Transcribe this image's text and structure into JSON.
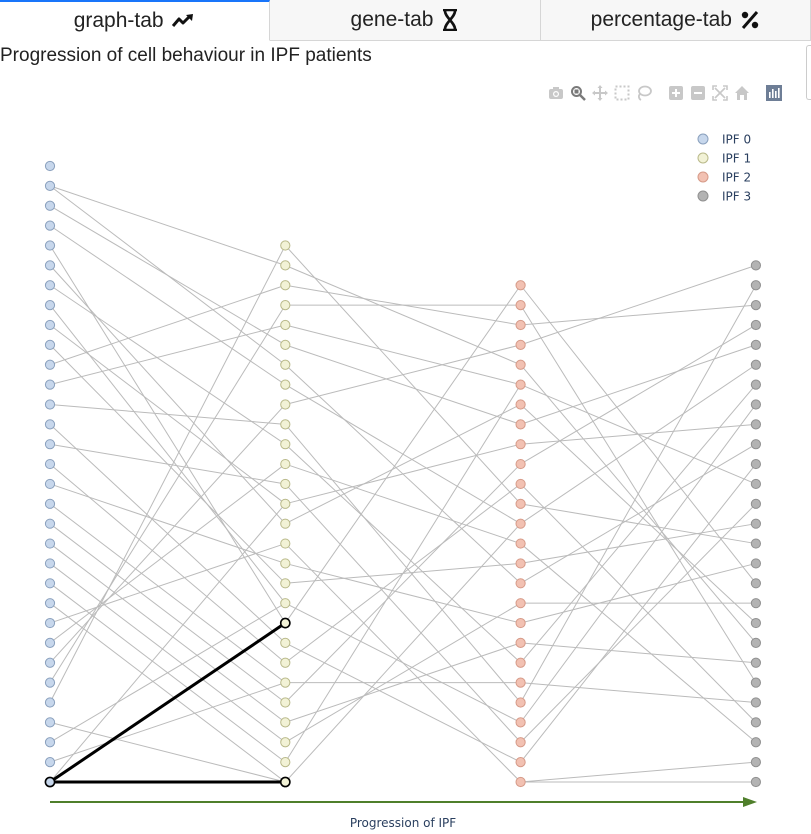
{
  "tabs": [
    {
      "label": "graph-tab",
      "icon": "trend-up-icon",
      "active": true
    },
    {
      "label": "gene-tab",
      "icon": "dna-icon",
      "active": false
    },
    {
      "label": "percentage-tab",
      "icon": "percent-icon",
      "active": false
    }
  ],
  "page_title": "Progression of cell behaviour in IPF patients",
  "modebar": [
    {
      "name": "camera-icon",
      "title": "Download plot as png"
    },
    {
      "name": "zoom-icon",
      "title": "Zoom"
    },
    {
      "name": "pan-icon",
      "title": "Pan"
    },
    {
      "name": "box-select-icon",
      "title": "Box Select"
    },
    {
      "name": "lasso-select-icon",
      "title": "Lasso Select"
    },
    {
      "name": "zoom-in-icon",
      "title": "Zoom in"
    },
    {
      "name": "zoom-out-icon",
      "title": "Zoom out"
    },
    {
      "name": "autoscale-icon",
      "title": "Autoscale"
    },
    {
      "name": "reset-axes-icon",
      "title": "Reset axes"
    },
    {
      "name": "plotly-logo-icon",
      "title": "Produced with Plotly"
    }
  ],
  "chart_data": {
    "type": "scatter",
    "xlabel": "Progression of IPF",
    "legend_position": "top-right",
    "colors": {
      "edge": "#bbbbbb",
      "highlight": "#000000",
      "arrow": "#4f7f2b"
    },
    "series": [
      {
        "name": "IPF 0",
        "x": 0,
        "count": 32,
        "ymin": 0,
        "color": "#c7d7ec",
        "edge": "#8aa0bd"
      },
      {
        "name": "IPF 1",
        "x": 1,
        "count": 28,
        "ymin": 0,
        "color": "#f2f2d6",
        "edge": "#b9b98a"
      },
      {
        "name": "IPF 2",
        "x": 2,
        "count": 26,
        "ymin": 0,
        "color": "#f2c1b2",
        "edge": "#d69a88"
      },
      {
        "name": "IPF 3",
        "x": 3,
        "count": 27,
        "ymin": 0,
        "color": "#b3b3b3",
        "edge": "#909090"
      }
    ],
    "edges": [
      [
        0,
        30,
        1,
        26
      ],
      [
        0,
        30,
        1,
        21
      ],
      [
        0,
        29,
        1,
        22
      ],
      [
        0,
        28,
        1,
        20
      ],
      [
        0,
        27,
        1,
        8
      ],
      [
        0,
        26,
        1,
        13
      ],
      [
        0,
        25,
        1,
        17
      ],
      [
        0,
        24,
        1,
        9
      ],
      [
        0,
        23,
        1,
        14
      ],
      [
        0,
        22,
        1,
        10
      ],
      [
        0,
        21,
        1,
        25
      ],
      [
        0,
        20,
        1,
        23
      ],
      [
        0,
        19,
        1,
        18
      ],
      [
        0,
        18,
        1,
        7
      ],
      [
        0,
        17,
        1,
        15
      ],
      [
        0,
        16,
        1,
        6
      ],
      [
        0,
        15,
        1,
        11
      ],
      [
        0,
        14,
        1,
        5
      ],
      [
        0,
        13,
        1,
        4
      ],
      [
        0,
        12,
        1,
        3
      ],
      [
        0,
        11,
        1,
        2
      ],
      [
        0,
        10,
        1,
        1
      ],
      [
        0,
        9,
        1,
        0
      ],
      [
        0,
        8,
        1,
        12
      ],
      [
        0,
        7,
        1,
        16
      ],
      [
        0,
        6,
        1,
        19
      ],
      [
        0,
        5,
        1,
        24
      ],
      [
        0,
        4,
        1,
        27
      ],
      [
        0,
        3,
        1,
        0
      ],
      [
        0,
        2,
        1,
        9
      ],
      [
        0,
        1,
        1,
        5
      ],
      [
        0,
        0,
        1,
        14
      ],
      [
        1,
        27,
        2,
        14
      ],
      [
        1,
        26,
        2,
        21
      ],
      [
        1,
        25,
        2,
        23
      ],
      [
        1,
        24,
        2,
        24
      ],
      [
        1,
        23,
        2,
        20
      ],
      [
        1,
        22,
        2,
        18
      ],
      [
        1,
        21,
        2,
        10
      ],
      [
        1,
        20,
        2,
        13
      ],
      [
        1,
        19,
        2,
        22
      ],
      [
        1,
        18,
        2,
        4
      ],
      [
        1,
        17,
        2,
        6
      ],
      [
        1,
        16,
        2,
        12
      ],
      [
        1,
        15,
        2,
        2
      ],
      [
        1,
        14,
        2,
        17
      ],
      [
        1,
        13,
        2,
        19
      ],
      [
        1,
        12,
        2,
        0
      ],
      [
        1,
        11,
        2,
        8
      ],
      [
        1,
        10,
        2,
        11
      ],
      [
        1,
        9,
        2,
        3
      ],
      [
        1,
        8,
        2,
        25
      ],
      [
        1,
        7,
        2,
        1
      ],
      [
        1,
        6,
        2,
        15
      ],
      [
        1,
        5,
        2,
        5
      ],
      [
        1,
        4,
        2,
        16
      ],
      [
        1,
        3,
        2,
        7
      ],
      [
        1,
        2,
        2,
        9
      ],
      [
        1,
        1,
        2,
        20
      ],
      [
        1,
        0,
        2,
        13
      ],
      [
        2,
        25,
        3,
        10
      ],
      [
        2,
        24,
        3,
        5
      ],
      [
        2,
        23,
        3,
        24
      ],
      [
        2,
        22,
        3,
        26
      ],
      [
        2,
        21,
        3,
        7
      ],
      [
        2,
        20,
        3,
        15
      ],
      [
        2,
        19,
        3,
        8
      ],
      [
        2,
        18,
        3,
        22
      ],
      [
        2,
        17,
        3,
        18
      ],
      [
        2,
        16,
        3,
        23
      ],
      [
        2,
        15,
        3,
        3
      ],
      [
        2,
        14,
        3,
        12
      ],
      [
        2,
        13,
        3,
        21
      ],
      [
        2,
        12,
        3,
        2
      ],
      [
        2,
        11,
        3,
        13
      ],
      [
        2,
        10,
        3,
        17
      ],
      [
        2,
        9,
        3,
        9
      ],
      [
        2,
        8,
        3,
        11
      ],
      [
        2,
        7,
        3,
        6
      ],
      [
        2,
        6,
        3,
        20
      ],
      [
        2,
        5,
        3,
        4
      ],
      [
        2,
        4,
        3,
        25
      ],
      [
        2,
        3,
        3,
        19
      ],
      [
        2,
        2,
        3,
        14
      ],
      [
        2,
        1,
        3,
        16
      ],
      [
        2,
        0,
        3,
        0
      ],
      [
        2,
        0,
        3,
        1
      ]
    ],
    "highlight_edges": [
      [
        0,
        0,
        1,
        8
      ],
      [
        0,
        0,
        1,
        0
      ]
    ],
    "highlight_nodes": [
      [
        0,
        0
      ],
      [
        1,
        8
      ],
      [
        1,
        0
      ]
    ]
  }
}
